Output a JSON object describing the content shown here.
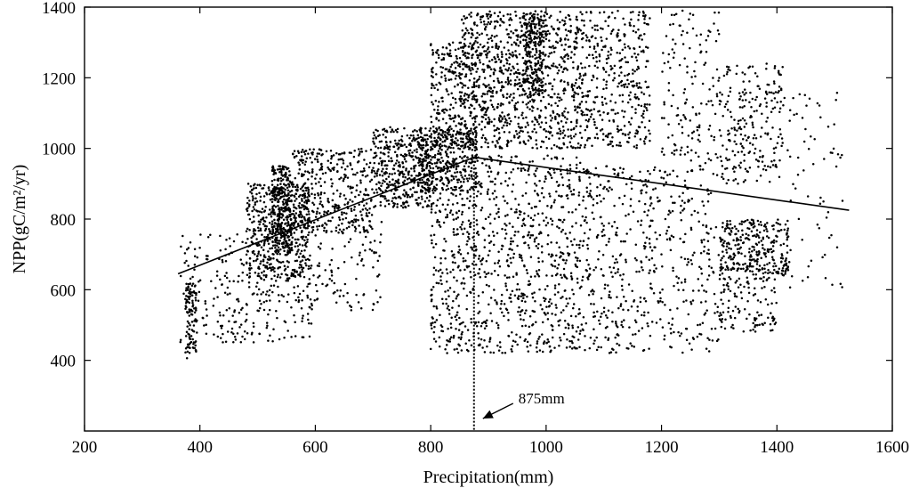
{
  "chart_data": {
    "type": "scatter",
    "title": "",
    "xlabel": "Precipitation(mm)",
    "ylabel": "NPP(gC/m²/yr)",
    "xlim": [
      200,
      1600
    ],
    "ylim": [
      200,
      1400
    ],
    "xticks": [
      200,
      400,
      600,
      800,
      1000,
      1200,
      1400,
      1600
    ],
    "yticks": [
      400,
      600,
      800,
      1000,
      1200,
      1400
    ],
    "grid": false,
    "point_color": "#000000",
    "fit_line": {
      "x": [
        362,
        875,
        1525
      ],
      "y": [
        645,
        975,
        825
      ]
    },
    "threshold": {
      "x": 875,
      "style": "dotted",
      "y_range": [
        200,
        975
      ],
      "label": "875mm"
    },
    "series": [
      {
        "clusters": [
          {
            "x": [
              375,
              395
            ],
            "y": [
              405,
              620
            ],
            "n": 90
          },
          {
            "x": [
              365,
              430
            ],
            "y": [
              420,
              760
            ],
            "n": 70
          },
          {
            "x": [
              430,
              480
            ],
            "y": [
              450,
              760
            ],
            "n": 80
          },
          {
            "x": [
              480,
              590
            ],
            "y": [
              630,
              900
            ],
            "n": 480
          },
          {
            "x": [
              525,
              560
            ],
            "y": [
              700,
              950
            ],
            "n": 300
          },
          {
            "x": [
              480,
              600
            ],
            "y": [
              450,
              700
            ],
            "n": 140
          },
          {
            "x": [
              560,
              700
            ],
            "y": [
              760,
              1000
            ],
            "n": 380
          },
          {
            "x": [
              600,
              720
            ],
            "y": [
              540,
              800
            ],
            "n": 90
          },
          {
            "x": [
              700,
              800
            ],
            "y": [
              830,
              1060
            ],
            "n": 420
          },
          {
            "x": [
              780,
              880
            ],
            "y": [
              880,
              1050
            ],
            "n": 400
          },
          {
            "x": [
              800,
              880
            ],
            "y": [
              1000,
              1300
            ],
            "n": 260
          },
          {
            "x": [
              800,
              880
            ],
            "y": [
              420,
              880
            ],
            "n": 260
          },
          {
            "x": [
              850,
              1060
            ],
            "y": [
              1000,
              1390
            ],
            "n": 950
          },
          {
            "x": [
              960,
              1000
            ],
            "y": [
              1150,
              1390
            ],
            "n": 220
          },
          {
            "x": [
              880,
              1060
            ],
            "y": [
              420,
              980
            ],
            "n": 650
          },
          {
            "x": [
              1060,
              1180
            ],
            "y": [
              1000,
              1390
            ],
            "n": 380
          },
          {
            "x": [
              1060,
              1200
            ],
            "y": [
              420,
              950
            ],
            "n": 350
          },
          {
            "x": [
              1200,
              1300
            ],
            "y": [
              420,
              1390
            ],
            "n": 330
          },
          {
            "x": [
              1300,
              1410
            ],
            "y": [
              900,
              1240
            ],
            "n": 230
          },
          {
            "x": [
              1300,
              1420
            ],
            "y": [
              640,
              800
            ],
            "n": 310
          },
          {
            "x": [
              1300,
              1400
            ],
            "y": [
              480,
              640
            ],
            "n": 120
          },
          {
            "x": [
              1410,
              1520
            ],
            "y": [
              600,
              1160
            ],
            "n": 70
          }
        ]
      }
    ]
  }
}
